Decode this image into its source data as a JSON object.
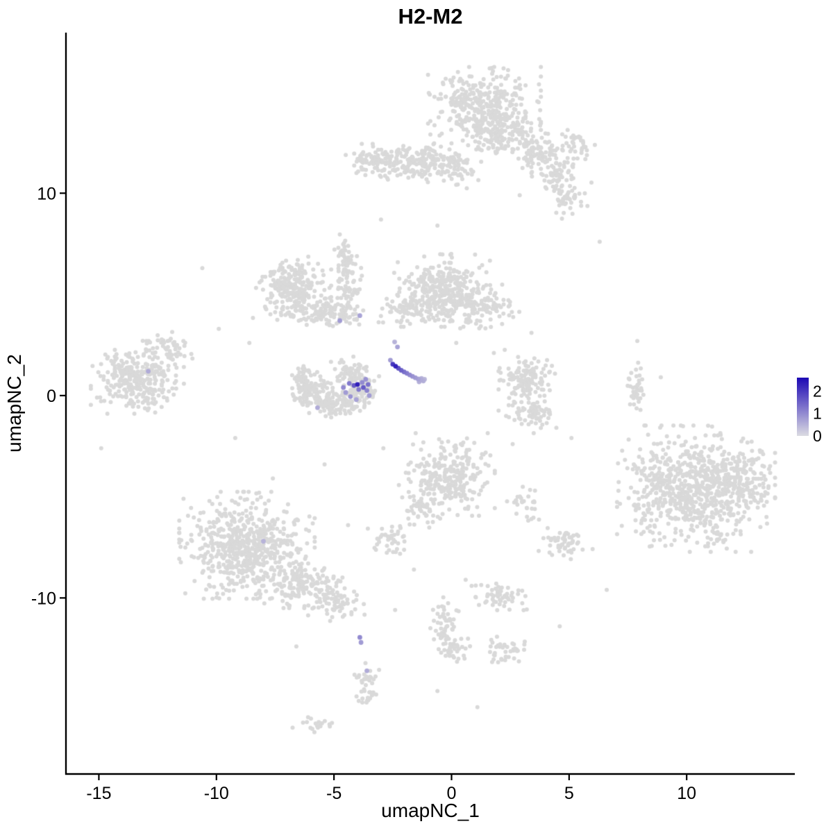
{
  "page": {
    "background": "#ffffff"
  },
  "chart_data": {
    "type": "scatter",
    "title": "H2-M2",
    "xlabel": "umapNC_1",
    "ylabel": "umapNC_2",
    "xlim": [
      -16.4,
      14.6
    ],
    "ylim": [
      -18.7,
      17.9
    ],
    "x_ticks": [
      -15,
      -10,
      -5,
      0,
      5,
      10
    ],
    "y_ticks": [
      -10,
      0,
      10
    ],
    "grid": false,
    "point_radius": 3,
    "base_point_color": "#d9d9d9",
    "legend": {
      "position": "right",
      "ticks": [
        2,
        1,
        0
      ],
      "scale_max": 2.6,
      "low_color": "#dcdce2",
      "high_color": "#1c08b4"
    },
    "clusters": [
      {
        "cx": 1.4,
        "cy": 14.2,
        "sx": 1.0,
        "sy": 0.85,
        "n": 380
      },
      {
        "cx": 2.2,
        "cy": 12.8,
        "sx": 0.8,
        "sy": 0.5,
        "n": 120
      },
      {
        "cx": 3.6,
        "cy": 12.0,
        "sx": 0.6,
        "sy": 0.5,
        "n": 80
      },
      {
        "cx": 4.5,
        "cy": 10.9,
        "sx": 0.45,
        "sy": 0.6,
        "n": 70
      },
      {
        "cx": 5.0,
        "cy": 9.7,
        "sx": 0.4,
        "sy": 0.4,
        "n": 40
      },
      {
        "cx": -1.5,
        "cy": 11.5,
        "sx": 1.1,
        "sy": 0.4,
        "n": 200
      },
      {
        "cx": -3.3,
        "cy": 11.6,
        "sx": 0.5,
        "sy": 0.35,
        "n": 60
      },
      {
        "cx": 0.3,
        "cy": 11.2,
        "sx": 0.4,
        "sy": 0.4,
        "n": 40
      },
      {
        "cx": 5.5,
        "cy": 12.4,
        "sx": 0.35,
        "sy": 0.3,
        "n": 30
      },
      {
        "cx": -0.4,
        "cy": 5.2,
        "sx": 0.85,
        "sy": 0.75,
        "n": 330
      },
      {
        "cx": 1.2,
        "cy": 4.4,
        "sx": 0.7,
        "sy": 0.45,
        "n": 110
      },
      {
        "cx": -1.9,
        "cy": 4.2,
        "sx": 0.5,
        "sy": 0.4,
        "n": 60
      },
      {
        "cx": -6.8,
        "cy": 5.3,
        "sx": 0.7,
        "sy": 0.65,
        "n": 260
      },
      {
        "cx": -5.3,
        "cy": 4.1,
        "sx": 0.7,
        "sy": 0.3,
        "n": 120
      },
      {
        "cx": -4.4,
        "cy": 5.6,
        "sx": 0.25,
        "sy": 0.7,
        "n": 60
      },
      {
        "cx": -4.6,
        "cy": 7.0,
        "sx": 0.25,
        "sy": 0.4,
        "n": 35
      },
      {
        "cx": -13.3,
        "cy": 0.9,
        "sx": 0.85,
        "sy": 0.75,
        "n": 300
      },
      {
        "cx": -12.1,
        "cy": 2.3,
        "sx": 0.45,
        "sy": 0.35,
        "n": 50
      },
      {
        "cx": -6.0,
        "cy": 0.2,
        "sx": 0.45,
        "sy": 0.4,
        "n": 110
      },
      {
        "cx": -4.9,
        "cy": -0.4,
        "sx": 0.5,
        "sy": 0.3,
        "n": 100
      },
      {
        "cx": -3.9,
        "cy": 0.3,
        "sx": 0.35,
        "sy": 0.5,
        "n": 110
      },
      {
        "cx": -6.3,
        "cy": 0.9,
        "sx": 0.2,
        "sy": 0.3,
        "n": 35
      },
      {
        "cx": -4.4,
        "cy": 1.2,
        "sx": 0.4,
        "sy": 0.3,
        "n": 40
      },
      {
        "cx": 3.2,
        "cy": 0.7,
        "sx": 0.5,
        "sy": 0.65,
        "n": 140
      },
      {
        "cx": 3.4,
        "cy": -0.9,
        "sx": 0.45,
        "sy": 0.4,
        "n": 60
      },
      {
        "cx": 7.8,
        "cy": 0.3,
        "sx": 0.17,
        "sy": 0.55,
        "n": 40
      },
      {
        "cx": 10.4,
        "cy": -4.6,
        "sx": 1.4,
        "sy": 1.3,
        "n": 700
      },
      {
        "cx": 12.3,
        "cy": -4.2,
        "sx": 0.6,
        "sy": 0.8,
        "n": 120
      },
      {
        "cx": 8.6,
        "cy": -4.5,
        "sx": 0.35,
        "sy": 0.8,
        "n": 40
      },
      {
        "cx": -0.2,
        "cy": -3.9,
        "sx": 0.85,
        "sy": 0.85,
        "n": 260
      },
      {
        "cx": -1.2,
        "cy": -5.7,
        "sx": 0.4,
        "sy": 0.45,
        "n": 50
      },
      {
        "cx": -2.6,
        "cy": -7.1,
        "sx": 0.4,
        "sy": 0.3,
        "n": 40
      },
      {
        "cx": 3.0,
        "cy": -5.4,
        "sx": 0.3,
        "sy": 0.45,
        "n": 30
      },
      {
        "cx": -8.7,
        "cy": -7.4,
        "sx": 1.2,
        "sy": 1.1,
        "n": 600
      },
      {
        "cx": -6.3,
        "cy": -9.3,
        "sx": 0.8,
        "sy": 0.5,
        "n": 150
      },
      {
        "cx": -4.9,
        "cy": -10.3,
        "sx": 0.5,
        "sy": 0.35,
        "n": 60
      },
      {
        "cx": 4.8,
        "cy": -7.3,
        "sx": 0.5,
        "sy": 0.35,
        "n": 55
      },
      {
        "cx": 2.0,
        "cy": -9.9,
        "sx": 0.5,
        "sy": 0.35,
        "n": 60
      },
      {
        "cx": -0.3,
        "cy": -11.3,
        "sx": 0.25,
        "sy": 0.65,
        "n": 55
      },
      {
        "cx": 0.1,
        "cy": -12.7,
        "sx": 0.3,
        "sy": 0.35,
        "n": 30
      },
      {
        "cx": 2.3,
        "cy": -12.6,
        "sx": 0.4,
        "sy": 0.3,
        "n": 40
      },
      {
        "cx": -3.6,
        "cy": -14.3,
        "sx": 0.22,
        "sy": 0.55,
        "n": 45
      },
      {
        "cx": -5.8,
        "cy": -16.2,
        "sx": 0.4,
        "sy": 0.18,
        "n": 20
      }
    ],
    "sparse_points": [
      [
        -10.6,
        6.3
      ],
      [
        -3.0,
        8.7
      ],
      [
        -0.6,
        8.4
      ],
      [
        6.3,
        7.6
      ],
      [
        7.9,
        2.7
      ],
      [
        -9.2,
        -2.1
      ],
      [
        -11.4,
        -5.1
      ],
      [
        2.6,
        -2.4
      ],
      [
        5.1,
        -2.1
      ],
      [
        -1.6,
        -8.6
      ],
      [
        0.6,
        -9.1
      ],
      [
        4.6,
        -11.4
      ],
      [
        -2.4,
        -10.6
      ],
      [
        -6.6,
        -12.4
      ],
      [
        -0.6,
        -14.6
      ],
      [
        1.1,
        -15.4
      ],
      [
        -4.4,
        -6.4
      ],
      [
        -7.6,
        -4.1
      ],
      [
        6.6,
        -9.6
      ],
      [
        3.4,
        3.1
      ],
      [
        -8.6,
        2.6
      ],
      [
        -9.9,
        3.3
      ],
      [
        -14.9,
        -2.6
      ],
      [
        0.2,
        2.6
      ],
      [
        1.8,
        2.1
      ],
      [
        -2.9,
        -2.6
      ],
      [
        -5.4,
        -3.4
      ],
      [
        8.9,
        0.9
      ],
      [
        -0.9,
        12.9
      ],
      [
        2.9,
        9.9
      ]
    ],
    "expression_points": [
      [
        -4.35,
        0.6,
        1.2
      ],
      [
        -4.15,
        0.5,
        1.6
      ],
      [
        -4.0,
        0.55,
        2.3
      ],
      [
        -3.95,
        0.3,
        1.2
      ],
      [
        -3.8,
        0.65,
        1.0
      ],
      [
        -3.75,
        0.4,
        1.6
      ],
      [
        -3.6,
        0.25,
        1.1
      ],
      [
        -3.55,
        0.55,
        1.3
      ],
      [
        -3.65,
        0.8,
        0.9
      ],
      [
        -4.5,
        0.15,
        0.8
      ],
      [
        -4.3,
        -0.05,
        0.9
      ],
      [
        -4.6,
        0.4,
        1.0
      ],
      [
        -4.05,
        -0.2,
        0.7
      ],
      [
        -3.5,
        0.0,
        0.8
      ],
      [
        -5.7,
        -0.6,
        0.6
      ],
      [
        -2.6,
        1.75,
        0.8
      ],
      [
        -2.5,
        1.55,
        2.0
      ],
      [
        -2.38,
        1.45,
        2.3
      ],
      [
        -2.26,
        1.35,
        1.7
      ],
      [
        -2.14,
        1.25,
        1.5
      ],
      [
        -2.02,
        1.17,
        1.3
      ],
      [
        -1.9,
        1.1,
        1.15
      ],
      [
        -1.78,
        1.02,
        1.0
      ],
      [
        -1.66,
        0.95,
        0.9
      ],
      [
        -1.54,
        0.88,
        0.8
      ],
      [
        -1.42,
        0.82,
        0.7
      ],
      [
        -1.3,
        0.78,
        0.6
      ],
      [
        -1.2,
        0.72,
        0.55
      ],
      [
        -1.28,
        0.85,
        0.5
      ],
      [
        -1.38,
        0.68,
        0.55
      ],
      [
        -1.15,
        0.8,
        0.45
      ],
      [
        -2.3,
        2.4,
        0.7
      ],
      [
        -2.42,
        2.65,
        0.5
      ],
      [
        -4.75,
        3.7,
        0.8
      ],
      [
        -3.9,
        3.95,
        0.7
      ],
      [
        -12.9,
        1.2,
        0.6
      ],
      [
        -8.0,
        -7.2,
        0.5
      ],
      [
        -3.9,
        -11.95,
        1.0
      ],
      [
        -3.85,
        -12.2,
        0.8
      ],
      [
        -3.6,
        -13.6,
        0.6
      ]
    ]
  }
}
